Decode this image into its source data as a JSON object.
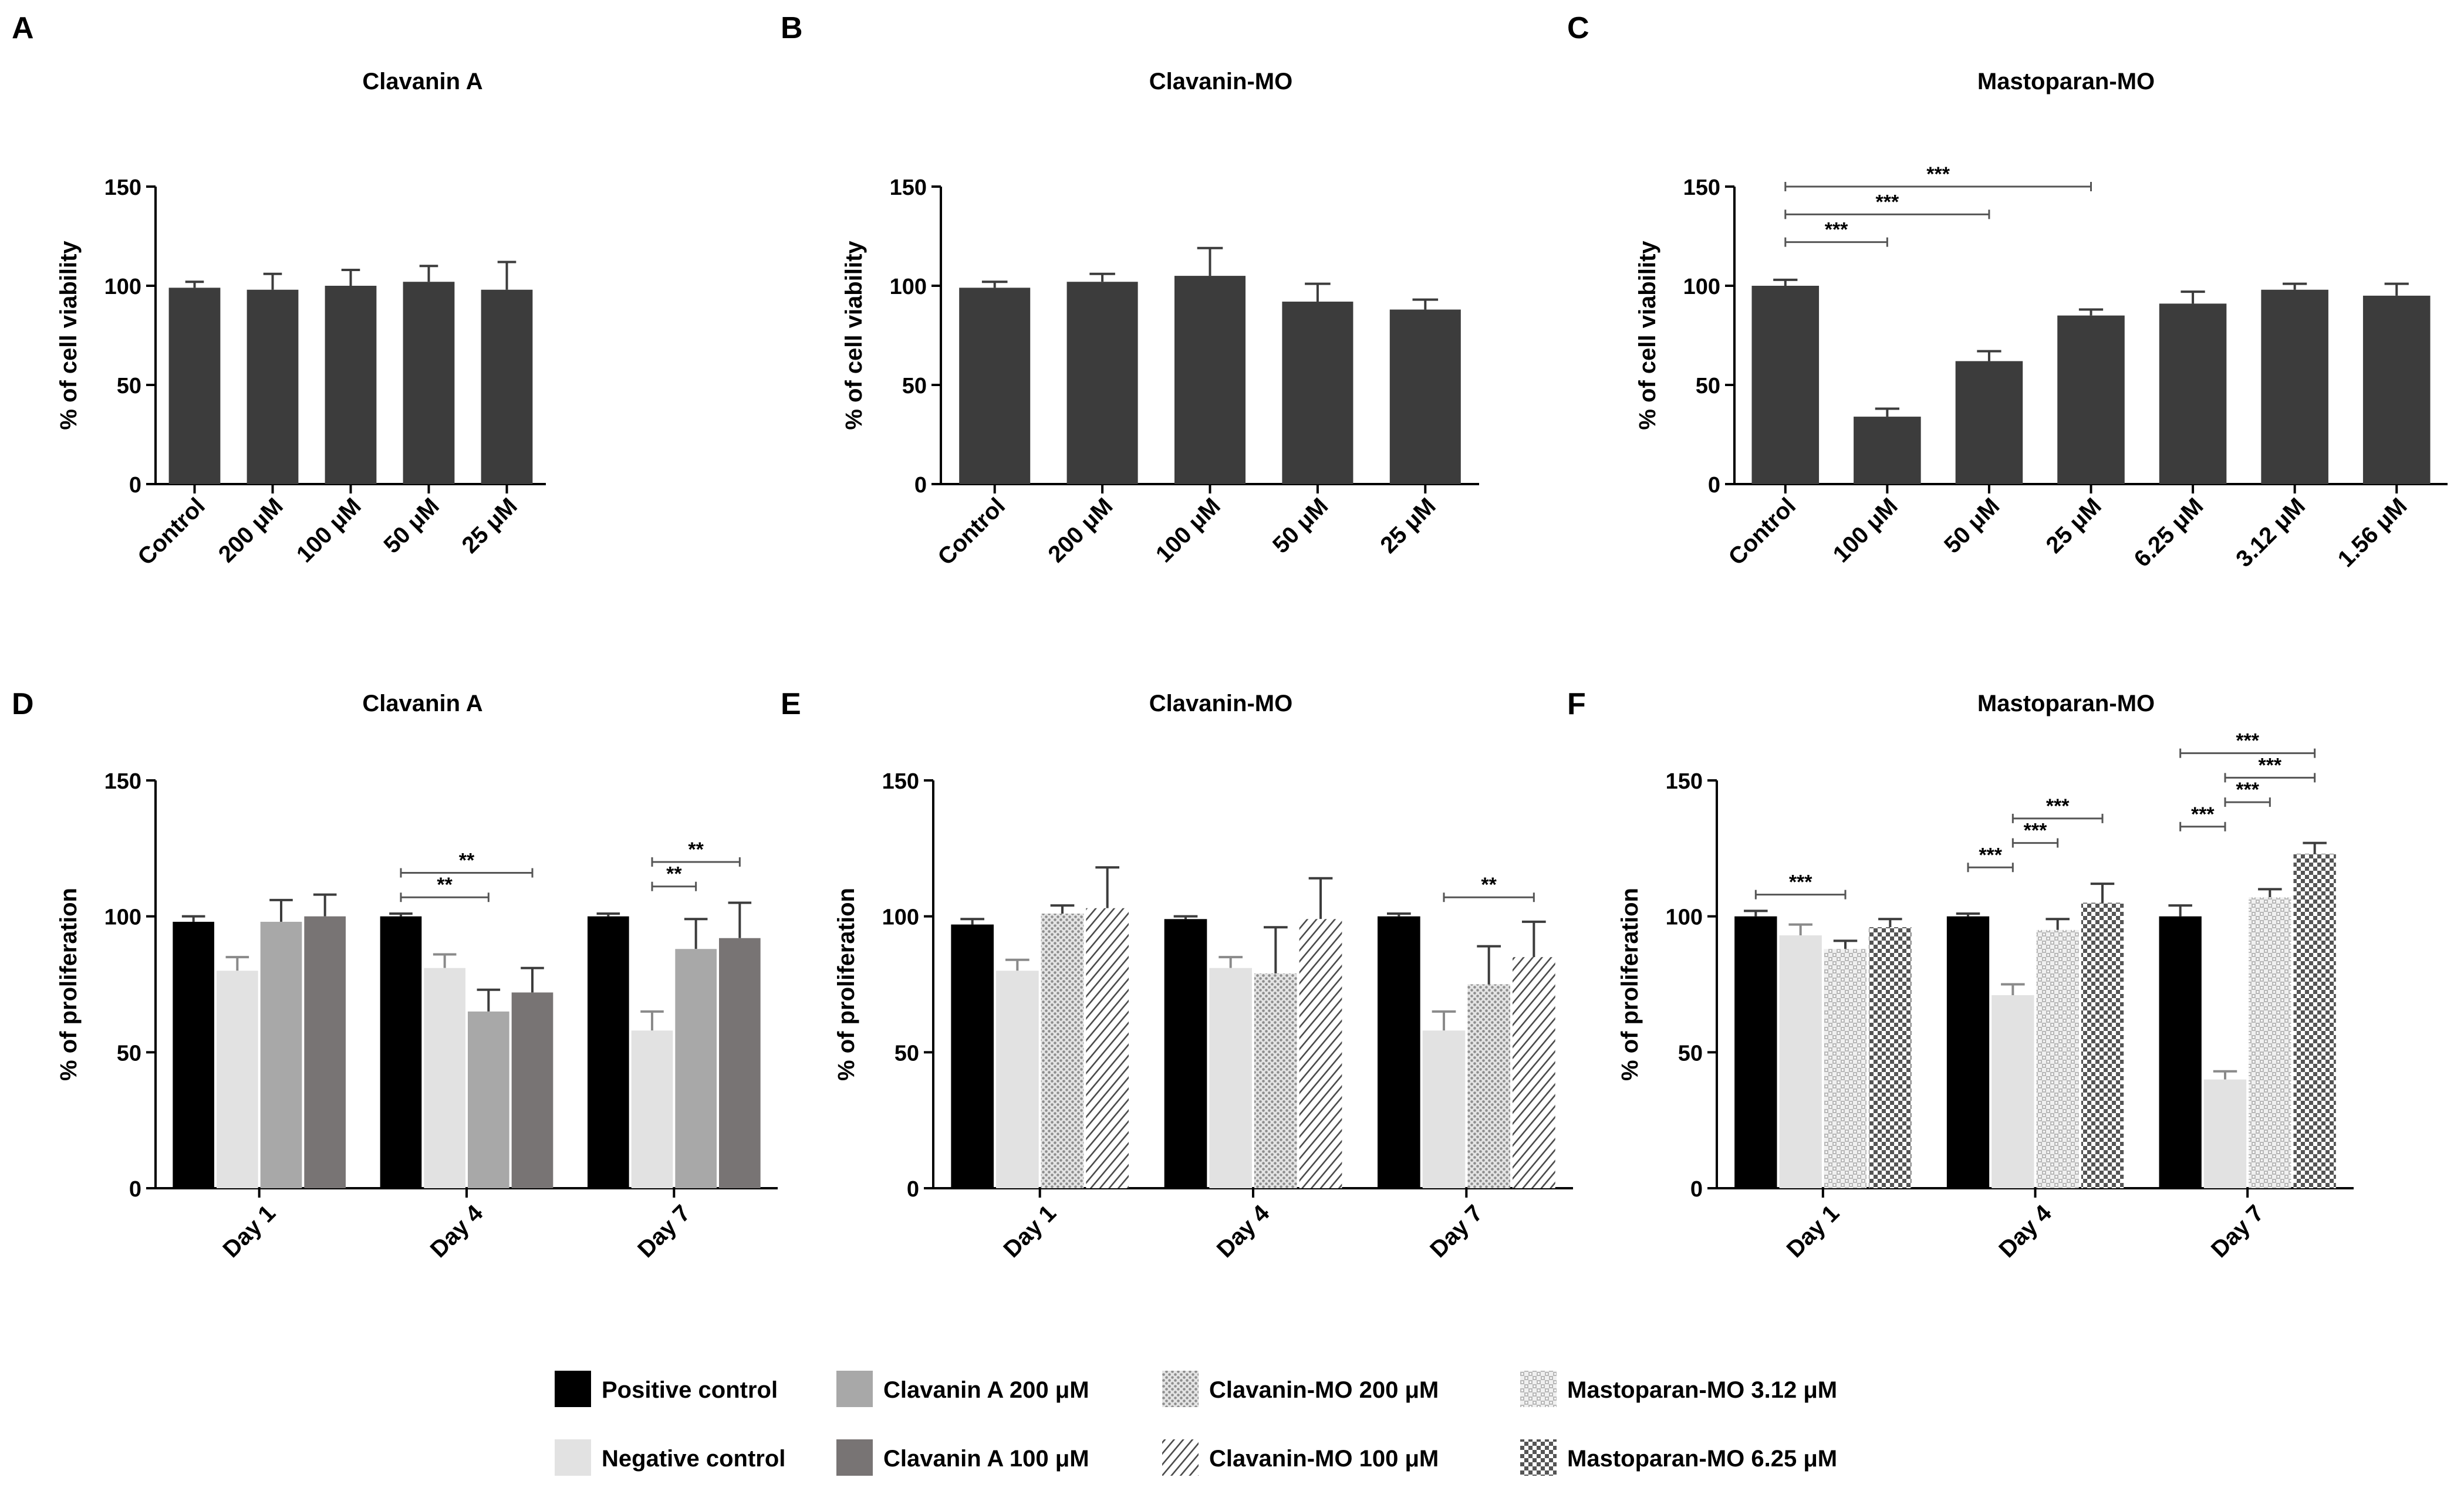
{
  "patterns": {
    "positive": "solid-black",
    "negative": "solid-light-grey",
    "clava200": "solid-grey",
    "clava100": "solid-dark-grey",
    "cmo200": "dotted-grey",
    "cmo100": "diagonal-hatch",
    "mmo312": "light-checker",
    "mmo625": "dark-checker"
  },
  "colors": {
    "bar": "#3c3c3c",
    "positive": "#000000",
    "negative": "#e2e2e2",
    "clava200": "#a8a8a8",
    "clava100": "#787474"
  },
  "chart_data": [
    {
      "panel": "A",
      "type": "bar",
      "title": "Clavanin A",
      "xlabel": "",
      "ylabel": "% of cell viability",
      "ylim": [
        0,
        150
      ],
      "yticks": [
        0,
        50,
        100,
        150
      ],
      "categories": [
        "Control",
        "200 μM",
        "100 μM",
        "50 μM",
        "25 μM"
      ],
      "values": [
        99,
        98,
        100,
        102,
        98
      ],
      "errors": [
        3,
        8,
        8,
        8,
        14
      ],
      "significance": []
    },
    {
      "panel": "B",
      "type": "bar",
      "title": "Clavanin-MO",
      "xlabel": "",
      "ylabel": "% of cell viability",
      "ylim": [
        0,
        150
      ],
      "yticks": [
        0,
        50,
        100,
        150
      ],
      "categories": [
        "Control",
        "200 μM",
        "100 μM",
        "50 μM",
        "25 μM"
      ],
      "values": [
        99,
        102,
        105,
        92,
        88
      ],
      "errors": [
        3,
        4,
        14,
        9,
        5
      ],
      "significance": []
    },
    {
      "panel": "C",
      "type": "bar",
      "title": "Mastoparan-MO",
      "xlabel": "",
      "ylabel": "% of cell viability",
      "ylim": [
        0,
        150
      ],
      "yticks": [
        0,
        50,
        100,
        150
      ],
      "categories": [
        "Control",
        "100 μM",
        "50 μM",
        "25 μM",
        "6.25 μM",
        "3.12 μM",
        "1.56 μM"
      ],
      "values": [
        100,
        34,
        62,
        85,
        91,
        98,
        95
      ],
      "errors": [
        3,
        4,
        5,
        3,
        6,
        3,
        6
      ],
      "significance": [
        {
          "from": 0,
          "to": 1,
          "label": "***"
        },
        {
          "from": 0,
          "to": 2,
          "label": "***"
        },
        {
          "from": 0,
          "to": 3,
          "label": "***"
        }
      ]
    },
    {
      "panel": "D",
      "type": "bar",
      "title": "Clavanin A",
      "xlabel": "",
      "ylabel": "% of proliferation",
      "ylim": [
        0,
        150
      ],
      "yticks": [
        0,
        50,
        100,
        150
      ],
      "categories": [
        "Day 1",
        "Day 4",
        "Day 7"
      ],
      "series": [
        {
          "pattern": "positive",
          "values": [
            98,
            100,
            100
          ],
          "errors": [
            2,
            1,
            1
          ]
        },
        {
          "pattern": "negative",
          "values": [
            80,
            81,
            58
          ],
          "errors": [
            5,
            5,
            7
          ]
        },
        {
          "pattern": "clava200",
          "values": [
            98,
            65,
            88
          ],
          "errors": [
            8,
            8,
            11
          ]
        },
        {
          "pattern": "clava100",
          "values": [
            100,
            72,
            92
          ],
          "errors": [
            8,
            9,
            13
          ]
        }
      ],
      "significance": [
        {
          "group": 1,
          "from": 0,
          "to": 2,
          "level": 0,
          "label": "**"
        },
        {
          "group": 1,
          "from": 0,
          "to": 3,
          "level": 1,
          "label": "**"
        },
        {
          "group": 2,
          "from": 1,
          "to": 2,
          "level": 0,
          "label": "**"
        },
        {
          "group": 2,
          "from": 1,
          "to": 3,
          "level": 1,
          "label": "**"
        }
      ]
    },
    {
      "panel": "E",
      "type": "bar",
      "title": "Clavanin-MO",
      "xlabel": "",
      "ylabel": "% of proliferation",
      "ylim": [
        0,
        150
      ],
      "yticks": [
        0,
        50,
        100,
        150
      ],
      "categories": [
        "Day 1",
        "Day 4",
        "Day 7"
      ],
      "series": [
        {
          "pattern": "positive",
          "values": [
            97,
            99,
            100
          ],
          "errors": [
            2,
            1,
            1
          ]
        },
        {
          "pattern": "negative",
          "values": [
            80,
            81,
            58
          ],
          "errors": [
            4,
            4,
            7
          ]
        },
        {
          "pattern": "cmo200",
          "values": [
            101,
            79,
            75
          ],
          "errors": [
            3,
            17,
            14
          ]
        },
        {
          "pattern": "cmo100",
          "values": [
            103,
            99,
            85
          ],
          "errors": [
            15,
            15,
            13
          ]
        }
      ],
      "significance": [
        {
          "group": 2,
          "from": 1,
          "to": 3,
          "level": 0,
          "label": "**"
        }
      ]
    },
    {
      "panel": "F",
      "type": "bar",
      "title": "Mastoparan-MO",
      "xlabel": "",
      "ylabel": "% of proliferation",
      "ylim": [
        0,
        150
      ],
      "yticks": [
        0,
        50,
        100,
        150
      ],
      "categories": [
        "Day 1",
        "Day 4",
        "Day 7"
      ],
      "series": [
        {
          "pattern": "positive",
          "values": [
            100,
            100,
            100
          ],
          "errors": [
            2,
            1,
            4
          ]
        },
        {
          "pattern": "negative",
          "values": [
            93,
            71,
            40
          ],
          "errors": [
            4,
            4,
            3
          ]
        },
        {
          "pattern": "mmo312",
          "values": [
            88,
            95,
            107
          ],
          "errors": [
            3,
            4,
            3
          ]
        },
        {
          "pattern": "mmo625",
          "values": [
            96,
            105,
            123
          ],
          "errors": [
            3,
            7,
            4
          ]
        }
      ],
      "significance": [
        {
          "group": 0,
          "from": 0,
          "to": 2,
          "level": 0,
          "label": "***"
        },
        {
          "group": 1,
          "from": 0,
          "to": 1,
          "level": 0,
          "label": "***"
        },
        {
          "group": 1,
          "from": 1,
          "to": 2,
          "level": 1,
          "label": "***"
        },
        {
          "group": 1,
          "from": 1,
          "to": 3,
          "level": 2,
          "label": "***"
        },
        {
          "group": 2,
          "from": 0,
          "to": 1,
          "level": 0,
          "label": "***"
        },
        {
          "group": 2,
          "from": 1,
          "to": 2,
          "level": 1,
          "label": "***"
        },
        {
          "group": 2,
          "from": 1,
          "to": 3,
          "level": 2,
          "label": "***"
        },
        {
          "group": 2,
          "from": 0,
          "to": 3,
          "level": 3,
          "label": "***"
        }
      ]
    }
  ],
  "legend": {
    "items": [
      {
        "pattern": "positive",
        "label": "Positive  control"
      },
      {
        "pattern": "negative",
        "label": "Negative control"
      },
      {
        "pattern": "clava200",
        "label": "Clavanin  A 200  μM"
      },
      {
        "pattern": "clava100",
        "label": "Clavanin  A 100  μM"
      },
      {
        "pattern": "cmo200",
        "label": "Clavanin-MO  200  μM"
      },
      {
        "pattern": "cmo100",
        "label": "Clavanin-MO  100  μM"
      },
      {
        "pattern": "mmo312",
        "label": "Mastoparan-MO  3.12  μM"
      },
      {
        "pattern": "mmo625",
        "label": "Mastoparan-MO  6.25  μM"
      }
    ]
  }
}
